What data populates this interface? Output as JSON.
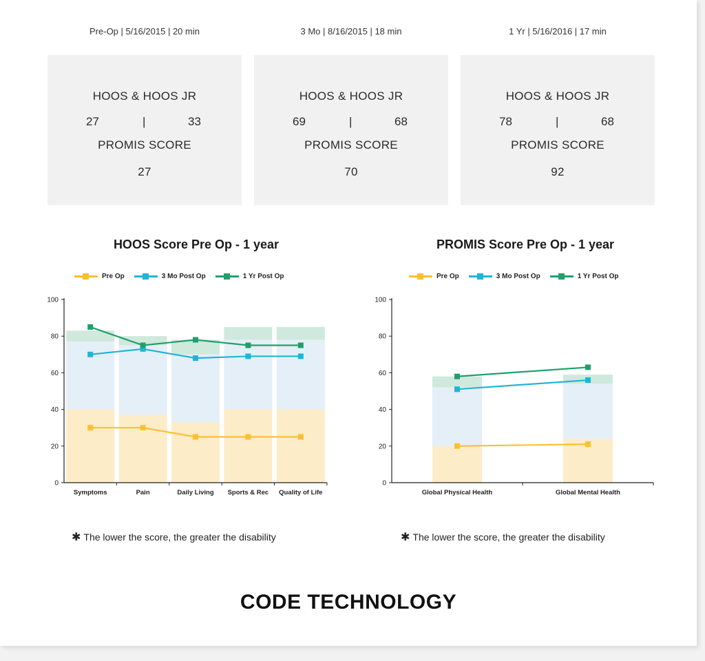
{
  "sessions": [
    {
      "header": "Pre-Op  |  5/16/2015  |  20 min",
      "hoos_label": "HOOS & HOOS JR",
      "hoos": "27",
      "hoos_jr": "33",
      "separator": "|",
      "promis_label": "PROMIS SCORE",
      "promis": "27"
    },
    {
      "header": "3 Mo  |  8/16/2015  |  18 min",
      "hoos_label": "HOOS & HOOS JR",
      "hoos": "69",
      "hoos_jr": "68",
      "separator": "|",
      "promis_label": "PROMIS SCORE",
      "promis": "70"
    },
    {
      "header": "1 Yr  |  5/16/2016  |  17 min",
      "hoos_label": "HOOS & HOOS JR",
      "hoos": "78",
      "hoos_jr": "68",
      "separator": "|",
      "promis_label": "PROMIS SCORE",
      "promis": "92"
    }
  ],
  "colors": {
    "pre_op": "#fbc02d",
    "three_mo": "#1fb5d6",
    "one_yr": "#1fa06a",
    "band_pre": "#fdecc8",
    "band_three": "#e5eff7",
    "band_one": "#cfe9dd"
  },
  "chart_data": [
    {
      "type": "line",
      "title": "HOOS Score Pre Op - 1 year",
      "categories": [
        "Symptoms",
        "Pain",
        "Daily Living",
        "Sports & Rec",
        "Quality of Life"
      ],
      "series": [
        {
          "name": "Pre Op",
          "values": [
            30,
            30,
            25,
            25,
            25
          ]
        },
        {
          "name": "3 Mo Post Op",
          "values": [
            70,
            73,
            68,
            69,
            69
          ]
        },
        {
          "name": "1 Yr Post Op",
          "values": [
            85,
            75,
            78,
            75,
            75
          ]
        }
      ],
      "bands": [
        {
          "pre": 40,
          "three": 77,
          "one": 83
        },
        {
          "pre": 37,
          "three": 75,
          "one": 80
        },
        {
          "pre": 33,
          "three": 70,
          "one": 78
        },
        {
          "pre": 40,
          "three": 78,
          "one": 85
        },
        {
          "pre": 40,
          "three": 78,
          "one": 85
        }
      ],
      "ylim": [
        0,
        100
      ],
      "yticks": [
        0,
        20,
        40,
        60,
        80,
        100
      ],
      "legend": "top",
      "grid": false,
      "footnote": "The lower the score, the greater the disability"
    },
    {
      "type": "line",
      "title": "PROMIS Score Pre Op - 1 year",
      "categories": [
        "Global Physical Health",
        "Global Mental Health"
      ],
      "series": [
        {
          "name": "Pre Op",
          "values": [
            20,
            21
          ]
        },
        {
          "name": "3 Mo Post Op",
          "values": [
            51,
            56
          ]
        },
        {
          "name": "1 Yr Post Op",
          "values": [
            58,
            63
          ]
        }
      ],
      "bands": [
        {
          "pre": 20,
          "three": 52,
          "one": 58
        },
        {
          "pre": 24,
          "three": 54,
          "one": 59
        }
      ],
      "ylim": [
        0,
        100
      ],
      "yticks": [
        0,
        20,
        40,
        60,
        80,
        100
      ],
      "legend": "top",
      "grid": false,
      "footnote": "The lower the score, the greater the disability"
    }
  ],
  "footnote_marker": "✱",
  "brand": "CODE TECHNOLOGY"
}
